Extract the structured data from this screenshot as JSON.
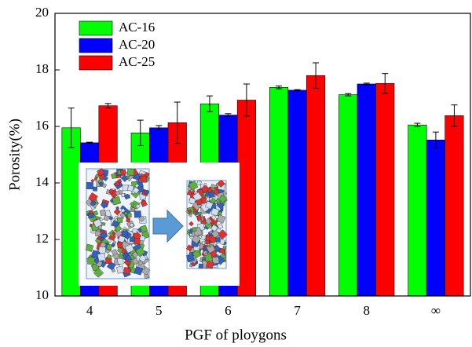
{
  "chart_data": {
    "type": "bar",
    "x_label": "PGF of ploygons",
    "y_label": "Porosity(%)",
    "categories": [
      "4",
      "5",
      "6",
      "7",
      "8",
      "∞"
    ],
    "series": [
      {
        "name": "AC-16",
        "color": "#00ff00",
        "values": [
          15.95,
          15.77,
          16.8,
          17.38,
          17.12,
          16.05
        ],
        "errors": [
          0.7,
          0.45,
          0.28,
          0.05,
          0.04,
          0.06
        ]
      },
      {
        "name": "AC-20",
        "color": "#0000ff",
        "values": [
          15.42,
          15.95,
          16.4,
          17.28,
          17.5,
          15.52
        ],
        "errors": [
          0.02,
          0.08,
          0.05,
          0.02,
          0.03,
          0.28
        ]
      },
      {
        "name": "AC-25",
        "color": "#ff0000",
        "values": [
          16.73,
          16.13,
          16.93,
          17.8,
          17.52,
          16.38
        ],
        "errors": [
          0.08,
          0.73,
          0.57,
          0.45,
          0.35,
          0.38
        ]
      }
    ],
    "ylim": [
      10,
      20
    ],
    "yticks": [
      10,
      12,
      14,
      16,
      18,
      20
    ],
    "legend": "upper left"
  }
}
